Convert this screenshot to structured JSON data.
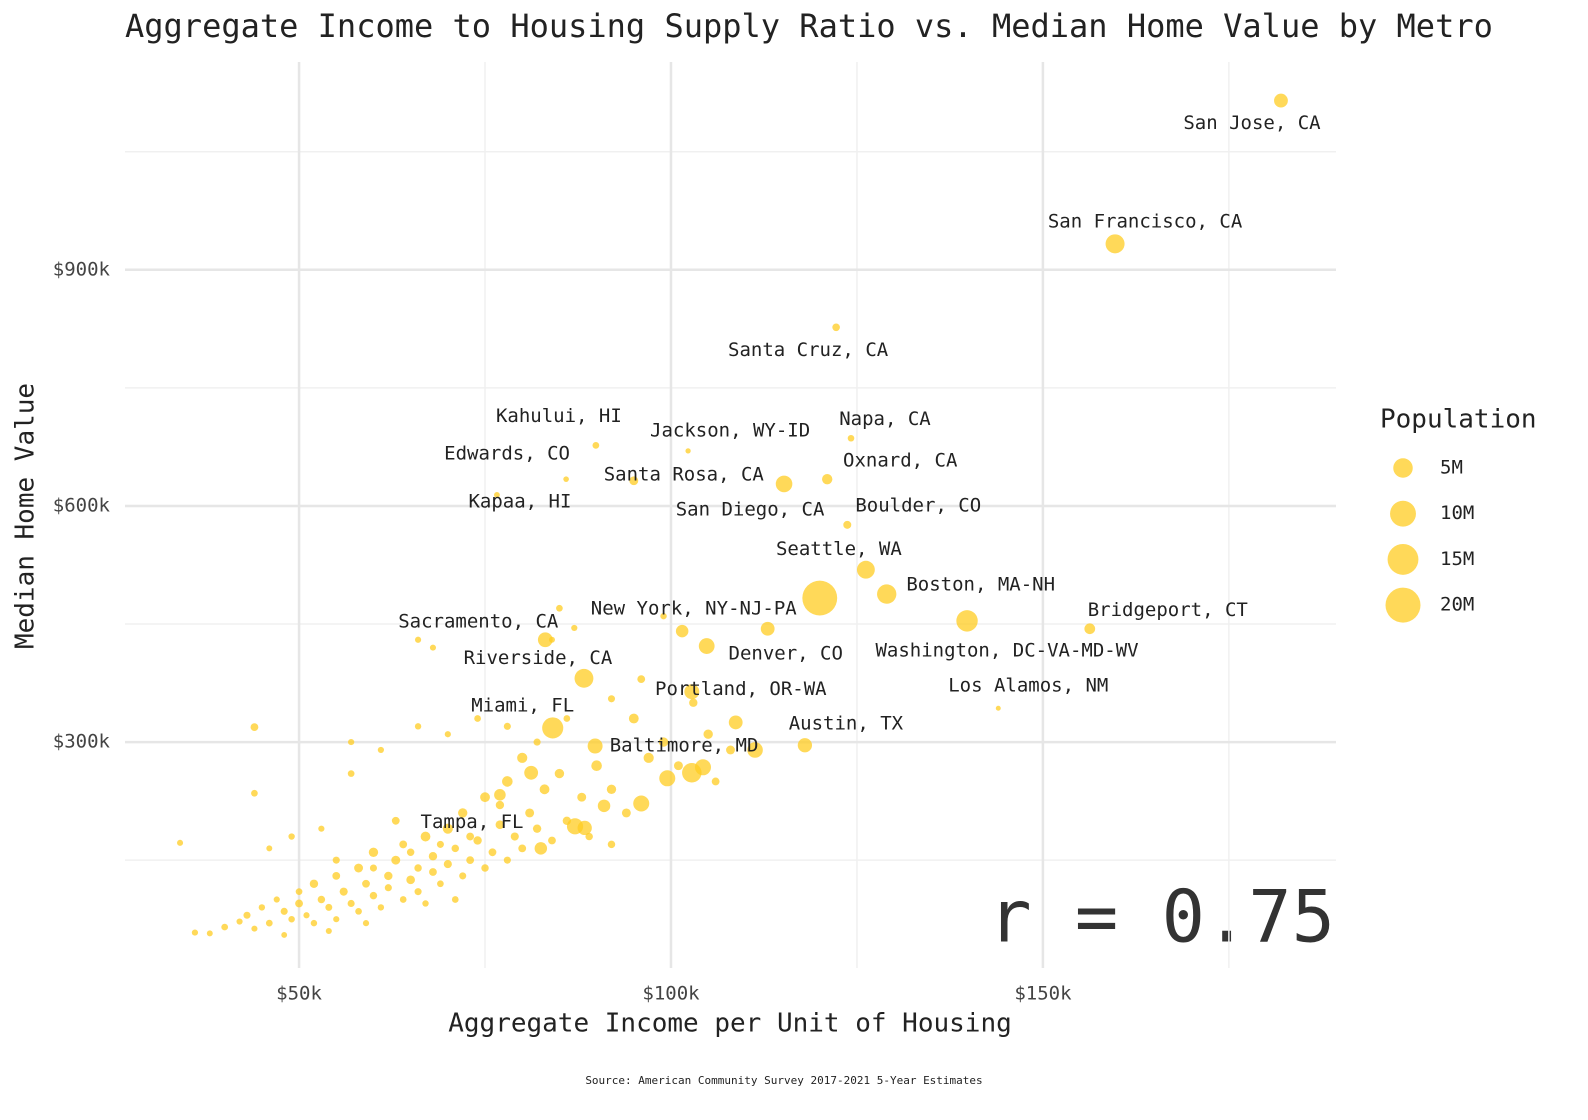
{
  "chart_data": {
    "type": "scatter",
    "title": "Aggregate Income to Housing Supply Ratio vs. Median Home Value by Metro",
    "x_label": "Aggregate Income per Unit of Housing",
    "y_label": "Median Home Value",
    "caption": "Source: American Community Survey 2017-2021 5-Year Estimates",
    "annotation": "r = 0.75",
    "legend_title": "Population",
    "color": "#ffcc22",
    "grid": true,
    "xlim": [
      26600,
      189400
    ],
    "ylim": [
      13000,
      1164000
    ],
    "xticks": [
      {
        "value": 50000,
        "label": "$50k"
      },
      {
        "value": 100000,
        "label": "$100k"
      },
      {
        "value": 150000,
        "label": "$150k"
      }
    ],
    "yticks": [
      {
        "value": 300000,
        "label": "$300k"
      },
      {
        "value": 600000,
        "label": "$600k"
      },
      {
        "value": 900000,
        "label": "$900k"
      }
    ],
    "xminor": [
      75000,
      125000,
      175000
    ],
    "yminor": [
      150000,
      450000,
      750000,
      1050000
    ],
    "size_legend": [
      {
        "value": 5000000,
        "label": "5M"
      },
      {
        "value": 10000000,
        "label": "10M"
      },
      {
        "value": 15000000,
        "label": "15M"
      },
      {
        "value": 20000000,
        "label": "20M"
      }
    ],
    "labels": [
      "San Jose, CA",
      "San Francisco, CA",
      "Santa Cruz, CA",
      "Kahului, HI",
      "Jackson, WY-ID",
      "Napa, CA",
      "Edwards, CO",
      "Santa Rosa, CA",
      "Oxnard, CA",
      "San Diego, CA",
      "Kapaa, HI",
      "Boulder, CO",
      "Seattle, WA",
      "Boston, MA-NH",
      "New York, NY-NJ-PA",
      "Washington, DC-VA-MD-WV",
      "Bridgeport, CT",
      "Sacramento, CA",
      "Denver, CO",
      "Riverside, CA",
      "Portland, OR-WA",
      "Los Alamos, NM",
      "Miami, FL",
      "Austin, TX",
      "Baltimore, MD",
      "Tampa, FL"
    ],
    "x": [
      182000,
      159700,
      122200,
      89900,
      102300,
      124200,
      85900,
      95000,
      121000,
      115200,
      76600,
      123700,
      126200,
      129000,
      120000,
      139800,
      156300,
      83100,
      104800,
      88300,
      102800,
      144000,
      84100,
      118000,
      111300,
      87100,
      101500,
      113000,
      96000,
      81200,
      89800,
      108700,
      104300,
      99500,
      102800,
      82500,
      91000,
      77000,
      88400,
      36000,
      38000,
      40000,
      42000,
      43000,
      44000,
      45000,
      46000,
      47000,
      48000,
      49000,
      50000,
      50000,
      51000,
      52000,
      52000,
      53000,
      54000,
      55000,
      55000,
      56000,
      57000,
      58000,
      58000,
      59000,
      60000,
      60000,
      61000,
      62000,
      62000,
      63000,
      64000,
      64000,
      65000,
      66000,
      66000,
      67000,
      68000,
      68000,
      69000,
      70000,
      70000,
      71000,
      72000,
      72000,
      73000,
      74000,
      75000,
      75000,
      76000,
      77000,
      78000,
      78000,
      79000,
      80000,
      80000,
      81000,
      82000,
      83000,
      84000,
      85000,
      86000,
      88000,
      89000,
      90000,
      92000,
      94000,
      95000,
      97000,
      99000,
      101000,
      103000,
      105000,
      106000,
      108000,
      92000,
      34000,
      44000,
      49000,
      53000,
      57000,
      61000,
      66000,
      70000,
      74000,
      78000,
      55000,
      59000,
      63000,
      67000,
      71000,
      60000,
      65000,
      69000,
      73000,
      77000,
      82000,
      86000,
      92000,
      96000,
      84000,
      87000,
      99000,
      68000,
      66000,
      85000,
      57000,
      46000,
      48000,
      54000,
      44000
    ],
    "values": [
      1115000,
      933000,
      827000,
      677000,
      670000,
      686000,
      634000,
      632000,
      634000,
      628000,
      614000,
      576000,
      519000,
      488000,
      483000,
      454000,
      444000,
      430000,
      422000,
      381000,
      364000,
      343000,
      318000,
      296000,
      290000,
      193000,
      441000,
      444000,
      222000,
      261000,
      295000,
      325000,
      268000,
      254000,
      261000,
      165000,
      219000,
      233000,
      191000,
      58000,
      57000,
      65000,
      72000,
      80000,
      63000,
      90000,
      70000,
      100000,
      85000,
      75000,
      95000,
      110000,
      80000,
      120000,
      70000,
      100000,
      90000,
      130000,
      75000,
      110000,
      95000,
      140000,
      85000,
      120000,
      105000,
      160000,
      90000,
      130000,
      115000,
      150000,
      100000,
      170000,
      125000,
      140000,
      110000,
      180000,
      135000,
      155000,
      120000,
      190000,
      145000,
      165000,
      130000,
      210000,
      150000,
      175000,
      140000,
      230000,
      160000,
      195000,
      150000,
      250000,
      180000,
      165000,
      280000,
      210000,
      190000,
      240000,
      175000,
      260000,
      200000,
      230000,
      180000,
      270000,
      240000,
      210000,
      330000,
      280000,
      300000,
      270000,
      350000,
      310000,
      250000,
      290000,
      170000,
      172000,
      235000,
      180000,
      190000,
      260000,
      290000,
      320000,
      310000,
      330000,
      320000,
      150000,
      70000,
      200000,
      95000,
      100000,
      140000,
      160000,
      170000,
      180000,
      220000,
      300000,
      330000,
      355000,
      380000,
      430000,
      445000,
      460000,
      420000,
      430000,
      470000,
      300000,
      165000,
      55000,
      60000,
      319000
    ],
    "sizes": [
      2000000,
      4700000,
      270000,
      160000,
      35000,
      140000,
      55000,
      490000,
      840000,
      3300000,
      70000,
      330000,
      4000000,
      4900000,
      19800000,
      6300000,
      950000,
      2400000,
      2900000,
      4600000,
      2500000,
      19000,
      6100000,
      2200000,
      2800000,
      3100000,
      1500000,
      2000000,
      3000000,
      2000000,
      2500000,
      2000000,
      3000000,
      3000000,
      5000000,
      1500000,
      1500000,
      1200000,
      2200000,
      100000,
      80000,
      150000,
      100000,
      200000,
      90000,
      120000,
      150000,
      100000,
      200000,
      130000,
      300000,
      150000,
      100000,
      400000,
      120000,
      250000,
      180000,
      300000,
      100000,
      350000,
      200000,
      500000,
      150000,
      300000,
      250000,
      600000,
      120000,
      400000,
      200000,
      500000,
      150000,
      300000,
      450000,
      250000,
      200000,
      700000,
      300000,
      400000,
      150000,
      800000,
      350000,
      250000,
      200000,
      600000,
      300000,
      400000,
      250000,
      700000,
      300000,
      450000,
      200000,
      900000,
      350000,
      300000,
      800000,
      500000,
      400000,
      700000,
      300000,
      600000,
      400000,
      500000,
      250000,
      900000,
      600000,
      500000,
      700000,
      800000,
      600000,
      500000,
      400000,
      600000,
      300000,
      500000,
      250000,
      90000,
      150000,
      120000,
      100000,
      150000,
      100000,
      120000,
      100000,
      150000,
      200000,
      200000,
      100000,
      300000,
      120000,
      150000,
      200000,
      250000,
      200000,
      300000,
      400000,
      200000,
      150000,
      200000,
      300000,
      80000,
      100000,
      120000,
      90000,
      100000,
      150000,
      100000,
      80000,
      70000,
      90000,
      300000
    ]
  }
}
